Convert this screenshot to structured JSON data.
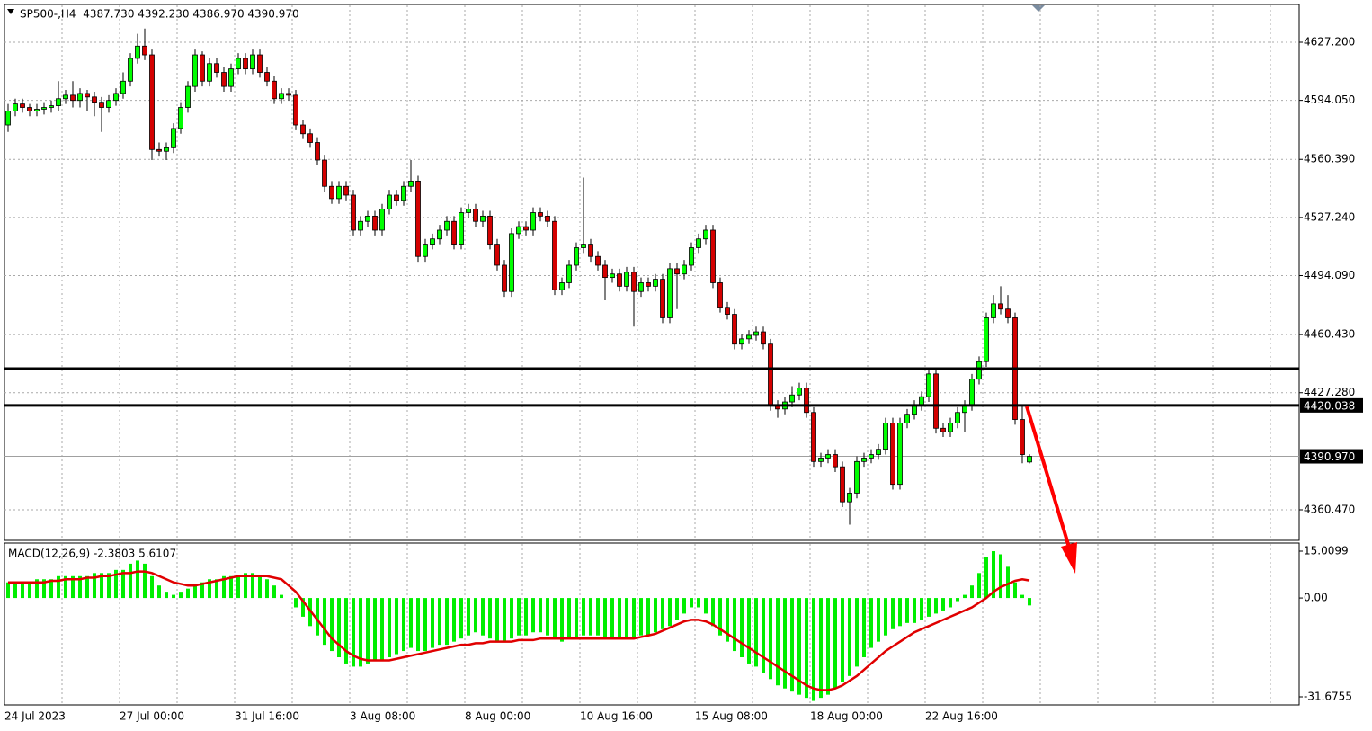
{
  "chart_data": [
    {
      "type": "candlestick",
      "title": "SP500-,H4  4387.730 4392.230 4386.970 4390.970",
      "x_labels": [
        "24 Jul 2023",
        "27 Jul 00:00",
        "31 Jul 16:00",
        "3 Aug 08:00",
        "8 Aug 00:00",
        "10 Aug 16:00",
        "15 Aug 08:00",
        "18 Aug 00:00",
        "22 Aug 16:00"
      ],
      "up_color": "#00ff00",
      "down_color": "#d40000",
      "grid": true,
      "ylim": [
        4343.03,
        4648.74
      ],
      "yticks": [
        {
          "value": 4627.2,
          "label": "4627.200"
        },
        {
          "value": 4594.05,
          "label": "4594.050"
        },
        {
          "value": 4560.39,
          "label": "4560.390"
        },
        {
          "value": 4527.24,
          "label": "4527.240"
        },
        {
          "value": 4494.09,
          "label": "4494.090"
        },
        {
          "value": 4460.43,
          "label": "4460.430"
        },
        {
          "value": 4427.28,
          "label": "4427.280"
        },
        {
          "value": 4360.47,
          "label": "4360.470"
        }
      ],
      "levels": [
        {
          "value": 4441
        },
        {
          "value": 4420.038,
          "label": "4420.038"
        }
      ],
      "last_price": {
        "value": 4390.97,
        "label": "4390.970"
      },
      "ohlc": [
        [
          4580,
          4592,
          4576,
          4588
        ],
        [
          4588,
          4595,
          4585,
          4592
        ],
        [
          4592,
          4595,
          4587,
          4590
        ],
        [
          4590,
          4592,
          4585,
          4588
        ],
        [
          4588,
          4592,
          4585,
          4589
        ],
        [
          4589,
          4593,
          4586,
          4590
        ],
        [
          4590,
          4594,
          4587,
          4591
        ],
        [
          4591,
          4605,
          4588,
          4595
        ],
        [
          4595,
          4600,
          4592,
          4597
        ],
        [
          4597,
          4605,
          4590,
          4594
        ],
        [
          4594,
          4601,
          4590,
          4598
        ],
        [
          4598,
          4600,
          4588,
          4596
        ],
        [
          4596,
          4599,
          4585,
          4593
        ],
        [
          4593,
          4596,
          4576,
          4590
        ],
        [
          4590,
          4597,
          4587,
          4594
        ],
        [
          4594,
          4601,
          4591,
          4598
        ],
        [
          4598,
          4610,
          4595,
          4605
        ],
        [
          4605,
          4621,
          4602,
          4618
        ],
        [
          4618,
          4632,
          4615,
          4625
        ],
        [
          4625,
          4635,
          4617,
          4620
        ],
        [
          4620,
          4623,
          4560,
          4566
        ],
        [
          4566,
          4570,
          4562,
          4565
        ],
        [
          4565,
          4570,
          4560,
          4567
        ],
        [
          4567,
          4581,
          4564,
          4578
        ],
        [
          4578,
          4593,
          4575,
          4590
        ],
        [
          4590,
          4605,
          4587,
          4602
        ],
        [
          4602,
          4623,
          4599,
          4620
        ],
        [
          4620,
          4622,
          4602,
          4605
        ],
        [
          4605,
          4618,
          4602,
          4615
        ],
        [
          4615,
          4618,
          4607,
          4610
        ],
        [
          4610,
          4613,
          4599,
          4602
        ],
        [
          4602,
          4615,
          4599,
          4612
        ],
        [
          4612,
          4621,
          4609,
          4618
        ],
        [
          4618,
          4621,
          4609,
          4612
        ],
        [
          4612,
          4623,
          4609,
          4620
        ],
        [
          4620,
          4623,
          4607,
          4610
        ],
        [
          4610,
          4613,
          4602,
          4605
        ],
        [
          4605,
          4608,
          4592,
          4595
        ],
        [
          4595,
          4601,
          4592,
          4598
        ],
        [
          4598,
          4601,
          4594,
          4597
        ],
        [
          4597,
          4600,
          4577,
          4580
        ],
        [
          4580,
          4583,
          4572,
          4575
        ],
        [
          4575,
          4578,
          4567,
          4570
        ],
        [
          4570,
          4573,
          4557,
          4560
        ],
        [
          4560,
          4563,
          4542,
          4545
        ],
        [
          4545,
          4548,
          4535,
          4538
        ],
        [
          4538,
          4548,
          4535,
          4545
        ],
        [
          4545,
          4548,
          4537,
          4540
        ],
        [
          4540,
          4543,
          4517,
          4520
        ],
        [
          4520,
          4528,
          4517,
          4525
        ],
        [
          4525,
          4531,
          4522,
          4528
        ],
        [
          4528,
          4531,
          4517,
          4520
        ],
        [
          4520,
          4535,
          4517,
          4532
        ],
        [
          4532,
          4543,
          4529,
          4540
        ],
        [
          4540,
          4543,
          4534,
          4537
        ],
        [
          4537,
          4548,
          4534,
          4545
        ],
        [
          4545,
          4560,
          4542,
          4548
        ],
        [
          4548,
          4551,
          4502,
          4505
        ],
        [
          4505,
          4515,
          4502,
          4512
        ],
        [
          4512,
          4518,
          4509,
          4515
        ],
        [
          4515,
          4523,
          4512,
          4520
        ],
        [
          4520,
          4528,
          4517,
          4525
        ],
        [
          4525,
          4528,
          4509,
          4512
        ],
        [
          4512,
          4533,
          4509,
          4530
        ],
        [
          4530,
          4535,
          4527,
          4532
        ],
        [
          4532,
          4535,
          4522,
          4525
        ],
        [
          4525,
          4531,
          4522,
          4528
        ],
        [
          4528,
          4531,
          4509,
          4512
        ],
        [
          4512,
          4515,
          4497,
          4500
        ],
        [
          4500,
          4503,
          4482,
          4485
        ],
        [
          4485,
          4521,
          4482,
          4518
        ],
        [
          4518,
          4525,
          4515,
          4522
        ],
        [
          4522,
          4525,
          4517,
          4520
        ],
        [
          4520,
          4533,
          4517,
          4530
        ],
        [
          4530,
          4533,
          4525,
          4528
        ],
        [
          4528,
          4531,
          4522,
          4525
        ],
        [
          4525,
          4528,
          4483,
          4486
        ],
        [
          4486,
          4493,
          4483,
          4490
        ],
        [
          4490,
          4503,
          4487,
          4500
        ],
        [
          4500,
          4513,
          4497,
          4510
        ],
        [
          4510,
          4550,
          4507,
          4512
        ],
        [
          4512,
          4515,
          4502,
          4505
        ],
        [
          4505,
          4508,
          4497,
          4500
        ],
        [
          4500,
          4503,
          4480,
          4493
        ],
        [
          4493,
          4498,
          4490,
          4495
        ],
        [
          4495,
          4498,
          4485,
          4488
        ],
        [
          4488,
          4499,
          4485,
          4496
        ],
        [
          4496,
          4499,
          4465,
          4485
        ],
        [
          4485,
          4493,
          4482,
          4490
        ],
        [
          4490,
          4493,
          4485,
          4488
        ],
        [
          4488,
          4495,
          4485,
          4492
        ],
        [
          4492,
          4495,
          4467,
          4470
        ],
        [
          4470,
          4501,
          4467,
          4498
        ],
        [
          4498,
          4501,
          4475,
          4495
        ],
        [
          4495,
          4503,
          4492,
          4500
        ],
        [
          4500,
          4513,
          4497,
          4510
        ],
        [
          4510,
          4518,
          4507,
          4515
        ],
        [
          4515,
          4523,
          4512,
          4520
        ],
        [
          4520,
          4523,
          4487,
          4490
        ],
        [
          4490,
          4493,
          4473,
          4476
        ],
        [
          4476,
          4479,
          4469,
          4472
        ],
        [
          4472,
          4475,
          4452,
          4455
        ],
        [
          4455,
          4461,
          4452,
          4458
        ],
        [
          4458,
          4463,
          4455,
          4460
        ],
        [
          4460,
          4465,
          4457,
          4462
        ],
        [
          4462,
          4465,
          4452,
          4455
        ],
        [
          4455,
          4458,
          4417,
          4420
        ],
        [
          4420,
          4423,
          4413,
          4418
        ],
        [
          4418,
          4425,
          4415,
          4422
        ],
        [
          4422,
          4431,
          4419,
          4426
        ],
        [
          4426,
          4433,
          4423,
          4430
        ],
        [
          4430,
          4433,
          4413,
          4416
        ],
        [
          4416,
          4419,
          4385,
          4388
        ],
        [
          4388,
          4393,
          4385,
          4390
        ],
        [
          4390,
          4395,
          4387,
          4392
        ],
        [
          4392,
          4395,
          4382,
          4385
        ],
        [
          4385,
          4388,
          4362,
          4365
        ],
        [
          4365,
          4373,
          4352,
          4370
        ],
        [
          4370,
          4391,
          4367,
          4388
        ],
        [
          4388,
          4393,
          4385,
          4390
        ],
        [
          4390,
          4395,
          4387,
          4392
        ],
        [
          4392,
          4398,
          4389,
          4395
        ],
        [
          4395,
          4413,
          4392,
          4410
        ],
        [
          4410,
          4413,
          4372,
          4375
        ],
        [
          4375,
          4413,
          4372,
          4410
        ],
        [
          4410,
          4418,
          4407,
          4415
        ],
        [
          4415,
          4423,
          4412,
          4420
        ],
        [
          4420,
          4428,
          4417,
          4425
        ],
        [
          4425,
          4441,
          4422,
          4438
        ],
        [
          4438,
          4441,
          4404,
          4407
        ],
        [
          4407,
          4410,
          4402,
          4405
        ],
        [
          4405,
          4413,
          4402,
          4410
        ],
        [
          4410,
          4419,
          4407,
          4416
        ],
        [
          4416,
          4423,
          4405,
          4420
        ],
        [
          4420,
          4438,
          4417,
          4435
        ],
        [
          4435,
          4448,
          4432,
          4445
        ],
        [
          4445,
          4473,
          4442,
          4470
        ],
        [
          4470,
          4483,
          4467,
          4478
        ],
        [
          4478,
          4488,
          4472,
          4475
        ],
        [
          4475,
          4483,
          4467,
          4470
        ],
        [
          4470,
          4473,
          4409,
          4412
        ],
        [
          4412,
          4420,
          4387,
          4392
        ],
        [
          4387.73,
          4392.23,
          4386.97,
          4390.97
        ]
      ]
    },
    {
      "type": "macd",
      "title": "MACD(12,26,9) -2.3803 5.6107",
      "ylim": [
        -34.27,
        17.6
      ],
      "yticks": [
        15.0099,
        {
          "value": 0,
          "label": "0.00"
        },
        -31.6755
      ],
      "series": [
        {
          "type": "bar",
          "color": "#00ee00",
          "values": [
            5,
            5,
            5,
            5,
            6,
            6,
            6,
            7,
            7,
            7,
            7,
            7,
            8,
            8,
            8,
            9,
            9,
            11,
            12,
            11,
            7,
            4,
            2,
            1,
            2,
            3,
            4,
            5,
            6,
            6,
            7,
            7,
            7,
            8,
            8,
            7,
            6,
            4,
            1,
            0,
            -3,
            -6,
            -9,
            -12,
            -15,
            -17,
            -19,
            -21,
            -22,
            -22,
            -21,
            -20,
            -20,
            -19,
            -18,
            -17,
            -16,
            -17,
            -17,
            -16,
            -15,
            -15,
            -14,
            -13,
            -12,
            -11,
            -12,
            -13,
            -14,
            -14,
            -13,
            -12,
            -12,
            -11,
            -11,
            -12,
            -13,
            -14,
            -13,
            -13,
            -12,
            -12,
            -12,
            -13,
            -13,
            -13,
            -13,
            -13,
            -12,
            -12,
            -11,
            -10,
            -9,
            -7,
            -5,
            -3,
            -3,
            -5,
            -9,
            -12,
            -14,
            -17,
            -19,
            -21,
            -22,
            -24,
            -26,
            -28,
            -29,
            -30,
            -31,
            -32,
            -33,
            -32,
            -31,
            -29,
            -27,
            -25,
            -22,
            -19,
            -16,
            -14,
            -12,
            -10,
            -9,
            -8,
            -8,
            -7,
            -6,
            -5,
            -4,
            -3,
            -1,
            1,
            4,
            8,
            13,
            15,
            14,
            10,
            5,
            1,
            -2.3803
          ]
        },
        {
          "type": "line",
          "color": "#e00000",
          "values": [
            5,
            5,
            5,
            5,
            5,
            5,
            5.5,
            5.5,
            6,
            6,
            6,
            6.5,
            6.5,
            7,
            7,
            7.5,
            8,
            8,
            8.5,
            8.5,
            8,
            7,
            6,
            5,
            4.5,
            4,
            4,
            4.5,
            5,
            5.5,
            6,
            6.5,
            7,
            7,
            7,
            7,
            7,
            6.5,
            6,
            4,
            2,
            -1,
            -4,
            -7,
            -10,
            -13,
            -15,
            -17,
            -18.5,
            -19.5,
            -20,
            -20,
            -20,
            -20,
            -19.5,
            -19,
            -18.5,
            -18,
            -17.5,
            -17,
            -16.5,
            -16,
            -15.5,
            -15,
            -15,
            -14.5,
            -14.5,
            -14,
            -14,
            -14,
            -14,
            -13.5,
            -13.5,
            -13.5,
            -13,
            -13,
            -13,
            -13,
            -13,
            -13,
            -13,
            -13,
            -13,
            -13,
            -13,
            -13,
            -13,
            -13,
            -12.5,
            -12,
            -11.5,
            -10.5,
            -9.5,
            -8.5,
            -7.5,
            -7,
            -7,
            -7.5,
            -8.5,
            -10,
            -11.5,
            -13,
            -14.5,
            -16,
            -17.5,
            -19,
            -20.5,
            -22,
            -23.5,
            -25,
            -26.5,
            -28,
            -29,
            -29.5,
            -29.5,
            -29,
            -28,
            -26.5,
            -25,
            -23,
            -21,
            -19,
            -17,
            -15.5,
            -14,
            -12.5,
            -11,
            -10,
            -9,
            -8,
            -7,
            -6,
            -5,
            -4,
            -3,
            -1.5,
            0,
            2,
            3.5,
            4.5,
            5.5,
            6,
            5.6107
          ]
        }
      ]
    }
  ]
}
